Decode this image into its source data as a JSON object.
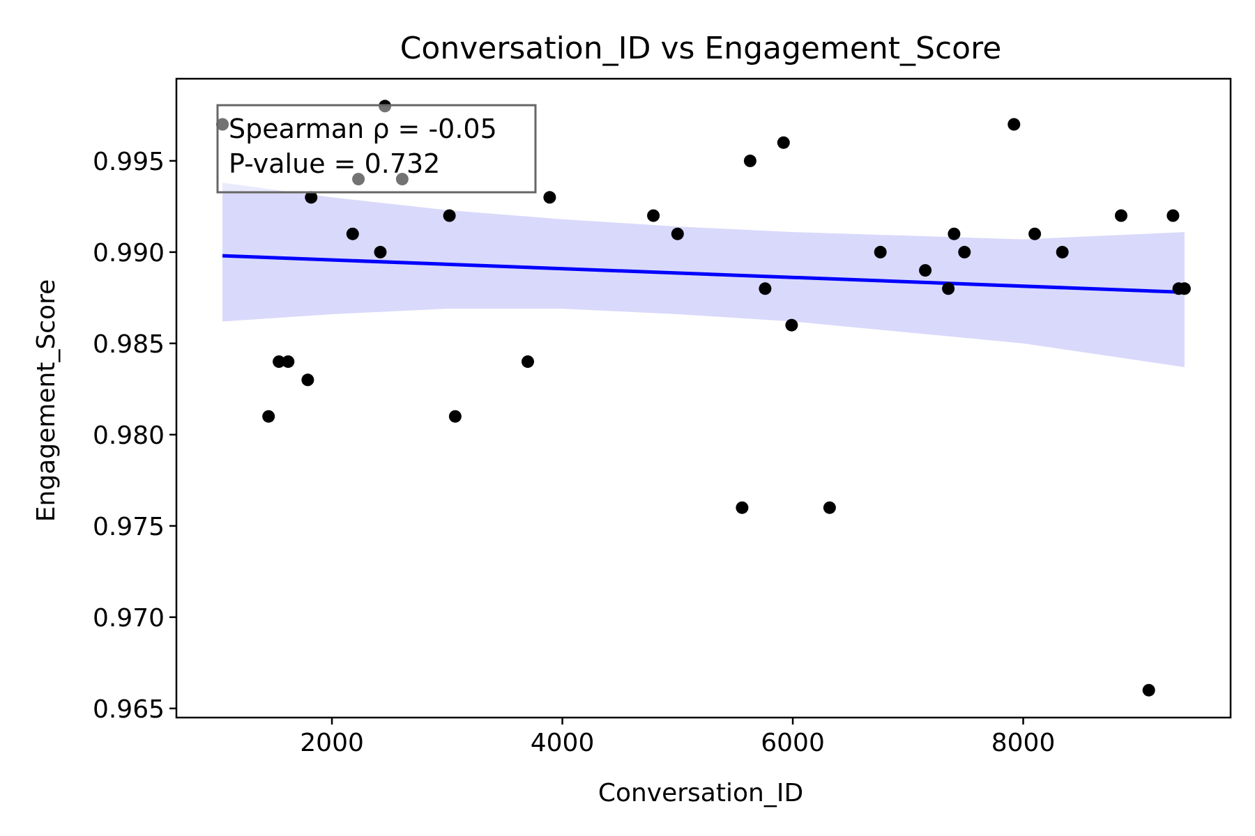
{
  "chart_data": {
    "type": "scatter",
    "title": "Conversation_ID vs Engagement_Score",
    "xlabel": "Conversation_ID",
    "ylabel": "Engagement_Score",
    "xlim": [
      650,
      9800
    ],
    "ylim": [
      0.9645,
      0.9995
    ],
    "xticks": [
      2000,
      4000,
      6000,
      8000
    ],
    "yticks": [
      0.965,
      0.97,
      0.975,
      0.98,
      0.985,
      0.99,
      0.995
    ],
    "xtick_labels": [
      "2000",
      "4000",
      "6000",
      "8000"
    ],
    "ytick_labels": [
      "0.965",
      "0.970",
      "0.975",
      "0.980",
      "0.985",
      "0.990",
      "0.995"
    ],
    "grid": false,
    "points": [
      {
        "x": 1050,
        "y": 0.997
      },
      {
        "x": 1450,
        "y": 0.981
      },
      {
        "x": 1540,
        "y": 0.984
      },
      {
        "x": 1620,
        "y": 0.984
      },
      {
        "x": 1790,
        "y": 0.983
      },
      {
        "x": 1820,
        "y": 0.993
      },
      {
        "x": 2180,
        "y": 0.991
      },
      {
        "x": 2230,
        "y": 0.994
      },
      {
        "x": 2420,
        "y": 0.99
      },
      {
        "x": 2460,
        "y": 0.998
      },
      {
        "x": 2610,
        "y": 0.994
      },
      {
        "x": 3020,
        "y": 0.992
      },
      {
        "x": 3070,
        "y": 0.981
      },
      {
        "x": 3700,
        "y": 0.984
      },
      {
        "x": 3890,
        "y": 0.993
      },
      {
        "x": 4790,
        "y": 0.992
      },
      {
        "x": 5000,
        "y": 0.991
      },
      {
        "x": 5560,
        "y": 0.976
      },
      {
        "x": 5630,
        "y": 0.995
      },
      {
        "x": 5760,
        "y": 0.988
      },
      {
        "x": 5920,
        "y": 0.996
      },
      {
        "x": 5990,
        "y": 0.986
      },
      {
        "x": 6320,
        "y": 0.976
      },
      {
        "x": 6760,
        "y": 0.99
      },
      {
        "x": 7150,
        "y": 0.989
      },
      {
        "x": 7350,
        "y": 0.988
      },
      {
        "x": 7400,
        "y": 0.991
      },
      {
        "x": 7490,
        "y": 0.99
      },
      {
        "x": 7920,
        "y": 0.997
      },
      {
        "x": 8100,
        "y": 0.991
      },
      {
        "x": 8340,
        "y": 0.99
      },
      {
        "x": 8850,
        "y": 0.992
      },
      {
        "x": 9090,
        "y": 0.966
      },
      {
        "x": 9300,
        "y": 0.992
      },
      {
        "x": 9350,
        "y": 0.988
      },
      {
        "x": 9400,
        "y": 0.988
      }
    ],
    "regression": {
      "x": [
        1050,
        9400
      ],
      "y": [
        0.9898,
        0.9878
      ],
      "color": "#0000ff"
    },
    "confidence_band": {
      "x": [
        1050,
        2000,
        3000,
        4000,
        5000,
        6000,
        7000,
        8000,
        9400
      ],
      "lower": [
        0.9862,
        0.9866,
        0.9869,
        0.9869,
        0.9866,
        0.9862,
        0.9856,
        0.985,
        0.9837
      ],
      "upper": [
        0.9938,
        0.993,
        0.9923,
        0.9918,
        0.9914,
        0.9911,
        0.9909,
        0.9907,
        0.9911
      ],
      "color": "#d9d9fb"
    },
    "annotation": {
      "lines": [
        "Spearman ρ = -0.05",
        "P-value = 0.732"
      ],
      "placement": "top-left"
    },
    "colors": {
      "points": "#000000",
      "regression_line": "#0000ff",
      "band": "#d9d9fb",
      "annotation_border": "#666666"
    }
  }
}
